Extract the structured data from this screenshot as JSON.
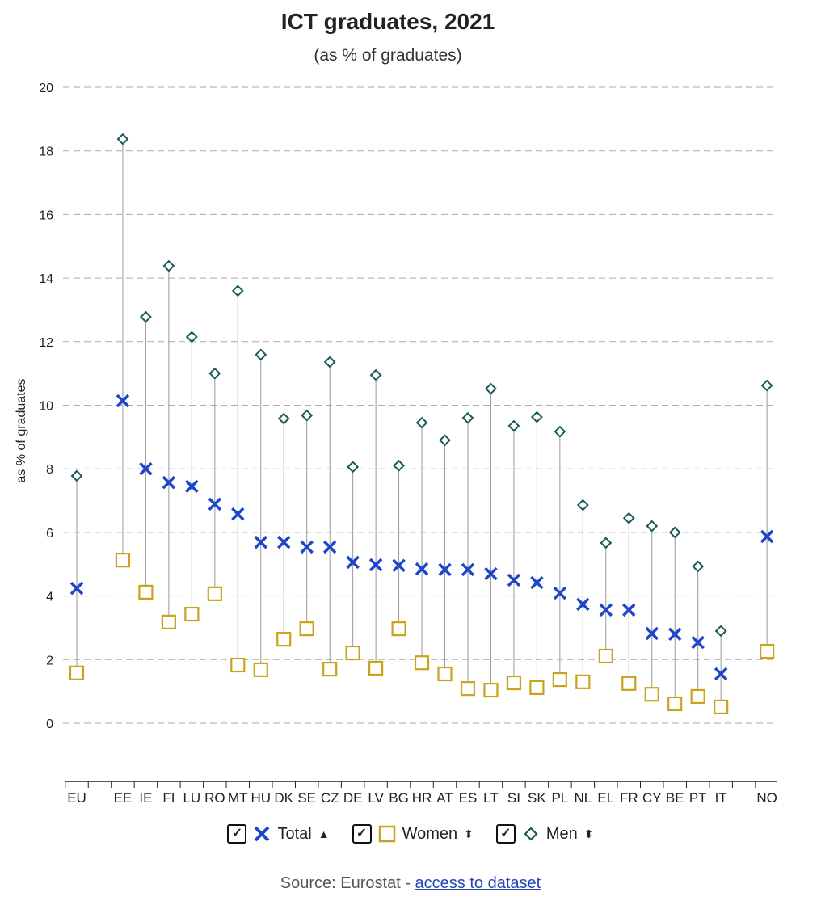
{
  "chart_data": {
    "type": "scatter",
    "title": "ICT graduates, 2021",
    "subtitle": "(as % of graduates)",
    "ylabel": "as % of graduates",
    "xlabel": "",
    "ylim": [
      0,
      20
    ],
    "yticks": [
      "0",
      "2",
      "4",
      "6",
      "8",
      "10",
      "12",
      "14",
      "16",
      "18",
      "20"
    ],
    "grid": true,
    "categories": [
      "EU",
      "EE",
      "IE",
      "FI",
      "LU",
      "RO",
      "MT",
      "HU",
      "DK",
      "SE",
      "CZ",
      "DE",
      "LV",
      "BG",
      "HR",
      "AT",
      "ES",
      "LT",
      "SI",
      "SK",
      "PL",
      "NL",
      "EL",
      "FR",
      "CY",
      "BE",
      "PT",
      "IT",
      "NO"
    ],
    "series": [
      {
        "name": "Total",
        "color": "#1f46c8",
        "marker": "x",
        "values": [
          4.24,
          10.14,
          8.0,
          7.57,
          7.45,
          6.89,
          6.58,
          5.69,
          5.69,
          5.54,
          5.54,
          5.06,
          4.98,
          4.96,
          4.85,
          4.83,
          4.83,
          4.7,
          4.5,
          4.42,
          4.09,
          3.74,
          3.56,
          3.56,
          2.82,
          2.8,
          2.54,
          1.55,
          5.87
        ]
      },
      {
        "name": "Women",
        "color": "#c9a31c",
        "marker": "square",
        "values": [
          1.58,
          5.13,
          4.12,
          3.18,
          3.43,
          4.07,
          1.83,
          1.68,
          2.64,
          2.97,
          1.7,
          2.21,
          1.73,
          2.97,
          1.9,
          1.55,
          1.09,
          1.04,
          1.27,
          1.12,
          1.37,
          1.3,
          2.11,
          1.25,
          0.91,
          0.61,
          0.84,
          0.51,
          2.26
        ]
      },
      {
        "name": "Men",
        "color": "#1a5a5a",
        "marker": "diamond",
        "values": [
          7.78,
          18.37,
          12.78,
          14.38,
          12.15,
          11.0,
          13.6,
          11.59,
          9.58,
          9.68,
          11.36,
          8.06,
          10.95,
          8.1,
          9.45,
          8.9,
          9.6,
          10.52,
          9.35,
          9.63,
          9.17,
          6.86,
          5.67,
          6.45,
          6.2,
          6.0,
          4.93,
          2.9,
          10.62
        ]
      }
    ],
    "legend": "bottom"
  },
  "legend_sort": {
    "Total": "ascending-arrow",
    "Women": "sort-arrows",
    "Men": "sort-arrows"
  },
  "source": {
    "prefix": "Source: Eurostat - ",
    "link": "access to dataset"
  }
}
